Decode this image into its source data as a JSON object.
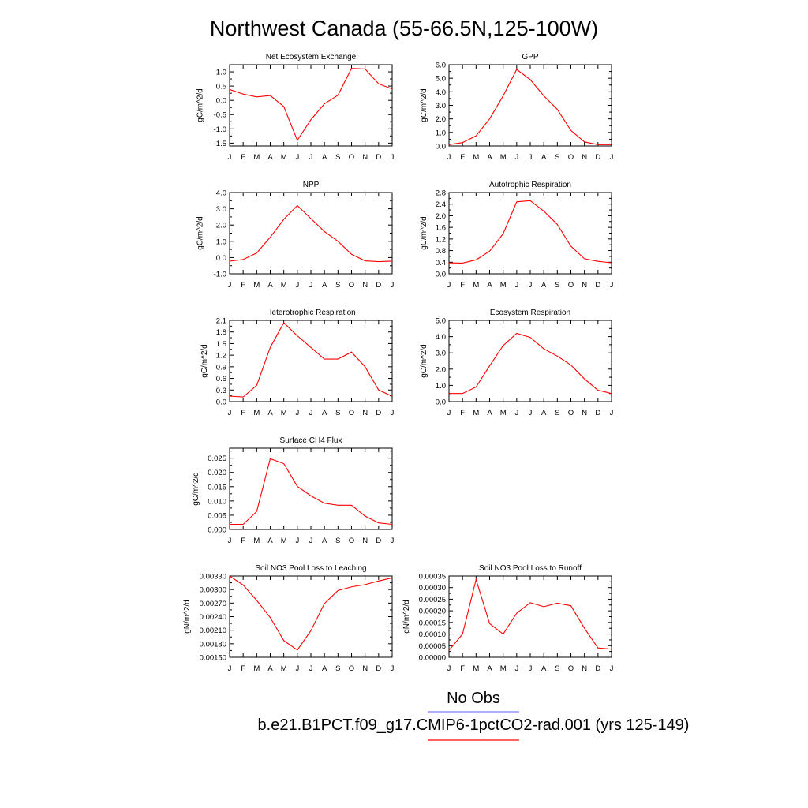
{
  "title": "Northwest Canada (55-66.5N,125-100W)",
  "months": [
    "J",
    "F",
    "M",
    "A",
    "M",
    "J",
    "J",
    "A",
    "S",
    "O",
    "N",
    "D",
    "J"
  ],
  "colors": {
    "model": "#ff0000",
    "obs": "#7f7fff",
    "axis": "#000000"
  },
  "legend": {
    "obs_label": "No Obs",
    "model_label": "b.e21.B1PCT.f09_g17.CMIP6-1pctCO2-rad.001 (yrs 125-149)"
  },
  "chart_data": [
    {
      "type": "line",
      "title": "Net Ecosystem Exchange",
      "ylabel": "gC/m^2/d",
      "ylim": [
        -1.6,
        1.25
      ],
      "yticks": [
        -1.5,
        -1.0,
        -0.5,
        0.0,
        0.5,
        1.0
      ],
      "ytick_labels": [
        "-1.5",
        "-1.0",
        "-0.5",
        "0.0",
        "0.5",
        "1.0"
      ],
      "values": [
        0.38,
        0.22,
        0.12,
        0.17,
        -0.22,
        -1.4,
        -0.68,
        -0.12,
        0.18,
        1.12,
        1.1,
        0.58,
        0.4
      ]
    },
    {
      "type": "line",
      "title": "GPP",
      "ylabel": "gC/m^2/d",
      "ylim": [
        0.0,
        6.0
      ],
      "yticks": [
        0.0,
        1.0,
        2.0,
        3.0,
        4.0,
        5.0,
        6.0
      ],
      "ytick_labels": [
        "0.0",
        "1.0",
        "2.0",
        "3.0",
        "4.0",
        "5.0",
        "6.0"
      ],
      "values": [
        0.1,
        0.25,
        0.75,
        2.0,
        3.7,
        5.65,
        4.9,
        3.7,
        2.7,
        1.15,
        0.3,
        0.1,
        0.1
      ]
    },
    {
      "type": "line",
      "title": "NPP",
      "ylabel": "gC/m^2/d",
      "ylim": [
        -1.0,
        4.0
      ],
      "yticks": [
        -1.0,
        0.0,
        1.0,
        2.0,
        3.0,
        4.0
      ],
      "ytick_labels": [
        "-1.0",
        "0.0",
        "1.0",
        "2.0",
        "3.0",
        "4.0"
      ],
      "values": [
        -0.22,
        -0.12,
        0.28,
        1.25,
        2.35,
        3.2,
        2.4,
        1.6,
        1.0,
        0.2,
        -0.2,
        -0.25,
        -0.22
      ]
    },
    {
      "type": "line",
      "title": "Autotrophic Respiration",
      "ylabel": "gC/m^2/d",
      "ylim": [
        0.0,
        2.8
      ],
      "yticks": [
        0.0,
        0.4,
        0.8,
        1.2,
        1.6,
        2.0,
        2.4,
        2.8
      ],
      "ytick_labels": [
        "0.0",
        "0.4",
        "0.8",
        "1.2",
        "1.6",
        "2.0",
        "2.4",
        "2.8"
      ],
      "values": [
        0.38,
        0.37,
        0.48,
        0.78,
        1.38,
        2.48,
        2.52,
        2.16,
        1.7,
        0.95,
        0.52,
        0.43,
        0.38
      ]
    },
    {
      "type": "line",
      "title": "Heterotrophic Respiration",
      "ylabel": "gC/m^2/d",
      "ylim": [
        0.0,
        2.1
      ],
      "yticks": [
        0.0,
        0.3,
        0.6,
        0.9,
        1.2,
        1.5,
        1.8,
        2.1
      ],
      "ytick_labels": [
        "0.0",
        "0.3",
        "0.6",
        "0.9",
        "1.2",
        "1.5",
        "1.8",
        "2.1"
      ],
      "values": [
        0.14,
        0.12,
        0.42,
        1.4,
        2.04,
        1.7,
        1.4,
        1.1,
        1.1,
        1.28,
        0.9,
        0.3,
        0.14
      ]
    },
    {
      "type": "line",
      "title": "Ecosystem Respiration",
      "ylabel": "gC/m^2/d",
      "ylim": [
        0.0,
        5.0
      ],
      "yticks": [
        0.0,
        1.0,
        2.0,
        3.0,
        4.0,
        5.0
      ],
      "ytick_labels": [
        "0.0",
        "1.0",
        "2.0",
        "3.0",
        "4.0",
        "5.0"
      ],
      "values": [
        0.5,
        0.5,
        0.9,
        2.2,
        3.45,
        4.2,
        3.95,
        3.25,
        2.8,
        2.25,
        1.4,
        0.7,
        0.5
      ]
    },
    {
      "type": "line",
      "title": "Surface CH4 Flux",
      "ylabel": "gC/m^2/d",
      "ylim": [
        0.0,
        0.0285
      ],
      "yticks": [
        0.0,
        0.005,
        0.01,
        0.015,
        0.02,
        0.025
      ],
      "ytick_labels": [
        "0.000",
        "0.005",
        "0.010",
        "0.015",
        "0.020",
        "0.025"
      ],
      "values": [
        0.0018,
        0.0018,
        0.0063,
        0.0248,
        0.0231,
        0.0151,
        0.0118,
        0.0092,
        0.0085,
        0.0085,
        0.0047,
        0.0023,
        0.0018
      ]
    },
    {
      "type": "line",
      "title": "Soil NO3 Pool Loss to Leaching",
      "ylabel": "gN/m^2/d",
      "ylim": [
        0.0015,
        0.0033
      ],
      "yticks": [
        0.0015,
        0.0018,
        0.0021,
        0.0024,
        0.0027,
        0.003,
        0.0033
      ],
      "ytick_labels": [
        "0.00150",
        "0.00180",
        "0.00210",
        "0.00240",
        "0.00270",
        "0.00300",
        "0.00330"
      ],
      "values": [
        0.0033,
        0.0031,
        0.00276,
        0.00238,
        0.00187,
        0.00166,
        0.00209,
        0.00269,
        0.00298,
        0.00306,
        0.00311,
        0.00319,
        0.00326
      ]
    },
    {
      "type": "line",
      "title": "Soil NO3 Pool Loss to Runoff",
      "ylabel": "gN/m^2/d",
      "ylim": [
        0.0,
        0.00035
      ],
      "yticks": [
        0.0,
        5e-05,
        0.0001,
        0.00015,
        0.0002,
        0.00025,
        0.0003,
        0.00035
      ],
      "ytick_labels": [
        "0.00000",
        "0.00005",
        "0.00010",
        "0.00015",
        "0.00020",
        "0.00025",
        "0.00030",
        "0.00035"
      ],
      "values": [
        3e-05,
        0.0001,
        0.000335,
        0.000145,
        0.0001,
        0.00019,
        0.000235,
        0.000218,
        0.000233,
        0.000222,
        0.000125,
        4e-05,
        3.5e-05
      ]
    }
  ]
}
